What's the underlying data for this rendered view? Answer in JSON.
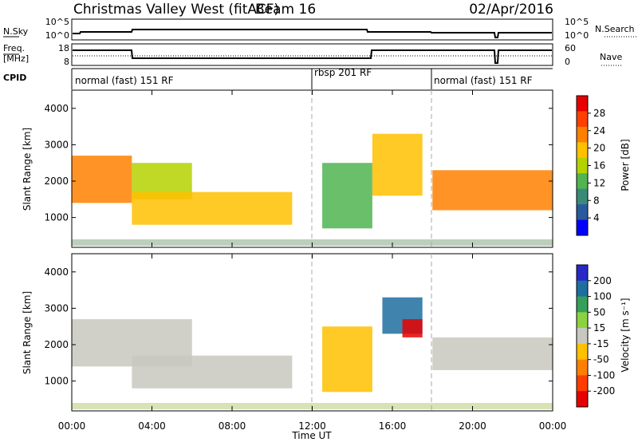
{
  "header": {
    "title": "Christmas Valley West (fitACF)",
    "beam": "Beam 16",
    "date": "02/Apr/2016"
  },
  "strip_labels": {
    "nsky": "N.Sky",
    "nsky_ticks": [
      "10^5",
      "10^0"
    ],
    "nsearch": "N.Search",
    "nsearch_ticks": [
      "10^5",
      "10^0"
    ],
    "freq_line1": "Freq.",
    "freq_line2": "[MHz]",
    "freq_ticks": [
      "18",
      "8"
    ],
    "nave": "Nave",
    "nave_ticks": [
      "60",
      "0"
    ],
    "cpid": "CPID"
  },
  "modes": [
    {
      "label": "normal (fast) 151 RF",
      "start_hour": 0
    },
    {
      "label": "rbsp 201 RF",
      "start_hour": 12
    },
    {
      "label": "normal (fast) 151 RF",
      "start_hour": 18
    }
  ],
  "time_axis": {
    "label": "Time UT",
    "ticks": [
      "00:00",
      "04:00",
      "08:00",
      "12:00",
      "16:00",
      "20:00",
      "00:00"
    ]
  },
  "range_axis": {
    "label": "Slant Range [km]",
    "ticks": [
      "1000",
      "2000",
      "3000",
      "4000"
    ]
  },
  "power_colorbar": {
    "label": "Power [dB]",
    "ticks": [
      "28",
      "24",
      "20",
      "16",
      "12",
      "8",
      "4"
    ],
    "colors": [
      "#e60000",
      "#ff4000",
      "#ff8000",
      "#ffc000",
      "#b4d200",
      "#50b450",
      "#3a8a7a",
      "#285aa0",
      "#0000ff"
    ]
  },
  "velocity_colorbar": {
    "label": "Velocity [m s⁻¹]",
    "ticks": [
      "200",
      "100",
      "50",
      "15",
      "-15",
      "-50",
      "-100",
      "-200"
    ],
    "colors": [
      "#2828c8",
      "#1f6ea0",
      "#36a05a",
      "#8cd240",
      "#c8c8c0",
      "#ffc000",
      "#ff8000",
      "#ff3c00",
      "#e60000"
    ]
  },
  "chart_data": [
    {
      "type": "heatmap",
      "title": "Power",
      "xlabel": "Time UT",
      "ylabel": "Slant Range [km]",
      "xlim": [
        0,
        24
      ],
      "ylim": [
        180,
        4500
      ],
      "colorbar": {
        "label": "Power [dB]",
        "range": [
          0,
          32
        ]
      },
      "regions": [
        {
          "t": [
            0,
            3
          ],
          "r": [
            1400,
            2700
          ],
          "value": 24
        },
        {
          "t": [
            3,
            6
          ],
          "r": [
            1500,
            2500
          ],
          "value": 16
        },
        {
          "t": [
            3,
            11
          ],
          "r": [
            800,
            1700
          ],
          "value": 20
        },
        {
          "t": [
            12.5,
            15
          ],
          "r": [
            700,
            2500
          ],
          "value": 14
        },
        {
          "t": [
            15,
            17.5
          ],
          "r": [
            1600,
            3300
          ],
          "value": 20
        },
        {
          "t": [
            18,
            24
          ],
          "r": [
            1200,
            2300
          ],
          "value": 24
        }
      ]
    },
    {
      "type": "heatmap",
      "title": "Velocity",
      "xlabel": "Time UT",
      "ylabel": "Slant Range [km]",
      "xlim": [
        0,
        24
      ],
      "ylim": [
        180,
        4500
      ],
      "colorbar": {
        "label": "Velocity [m s⁻¹]",
        "range": [
          -200,
          200
        ]
      },
      "regions": [
        {
          "t": [
            0,
            6
          ],
          "r": [
            1400,
            2700
          ],
          "value": 0
        },
        {
          "t": [
            3,
            11
          ],
          "r": [
            800,
            1700
          ],
          "value": 0
        },
        {
          "t": [
            12.5,
            15
          ],
          "r": [
            700,
            2500
          ],
          "value": -40
        },
        {
          "t": [
            15.5,
            17.5
          ],
          "r": [
            2300,
            3300
          ],
          "value": 150
        },
        {
          "t": [
            16.5,
            17.5
          ],
          "r": [
            2200,
            2700
          ],
          "value": -200
        },
        {
          "t": [
            18,
            24
          ],
          "r": [
            1300,
            2200
          ],
          "value": 0
        }
      ]
    }
  ]
}
